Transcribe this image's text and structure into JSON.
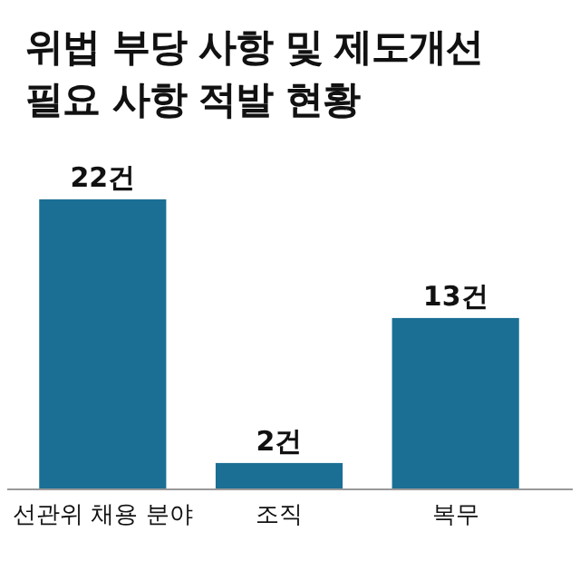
{
  "chart_data": {
    "type": "bar",
    "title": "위법 부당 사항 및 제도개선 필요 사항 적발 현황",
    "categories": [
      "선관위 채용 분야",
      "조직",
      "복무"
    ],
    "values": [
      22,
      2,
      13
    ],
    "value_labels": [
      "22건",
      "2건",
      "13건"
    ],
    "color": "#1b6f95"
  }
}
